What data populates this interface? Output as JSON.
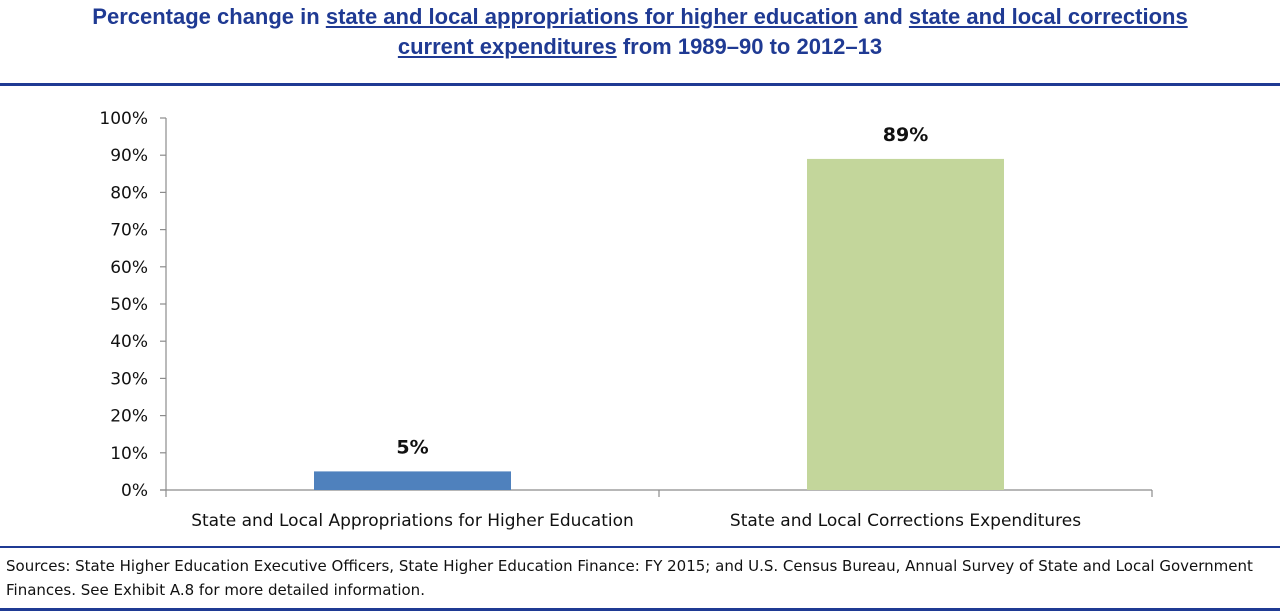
{
  "title": {
    "p1": "Percentage change in ",
    "link1": "state and local appropriations for higher education",
    "p2": " and ",
    "link2": "state and local corrections",
    "link3": "current expenditures",
    "p3": " from 1989–90 to 2012–13"
  },
  "colors": {
    "title": "#1f3a93",
    "bar1": "#4f81bd",
    "bar2": "#c3d69b",
    "rule": "#1f3a93"
  },
  "chart_data": {
    "type": "bar",
    "categories": [
      "State and Local Appropriations for Higher Education",
      "State and Local Corrections Expenditures"
    ],
    "values": [
      5,
      89
    ],
    "data_labels": [
      "5%",
      "89%"
    ],
    "bar_colors": [
      "#4f81bd",
      "#c3d69b"
    ],
    "ylim": [
      0,
      100
    ],
    "yticks": [
      0,
      10,
      20,
      30,
      40,
      50,
      60,
      70,
      80,
      90,
      100
    ],
    "ytick_labels": [
      "0%",
      "10%",
      "20%",
      "30%",
      "40%",
      "50%",
      "60%",
      "70%",
      "80%",
      "90%",
      "100%"
    ],
    "grid": false,
    "legend": "none"
  },
  "source": "Sources: State Higher Education Executive Officers, State Higher Education Finance: FY 2015; and U.S. Census Bureau, Annual Survey of State and Local Government Finances. See Exhibit A.8 for more detailed information."
}
